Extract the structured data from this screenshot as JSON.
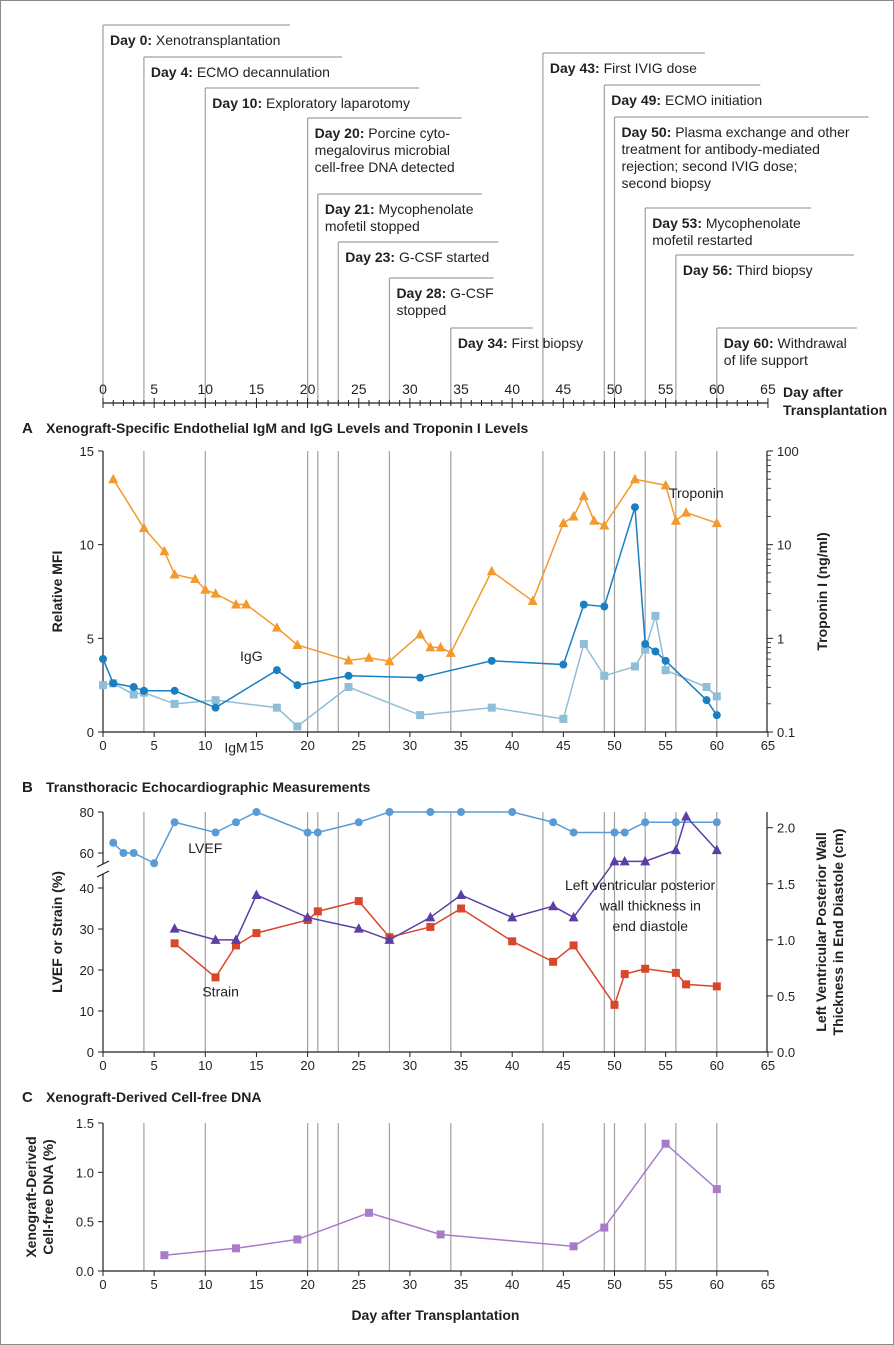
{
  "timeline": {
    "axis_label": "Day after Transplantation",
    "ticks": [
      0,
      5,
      10,
      15,
      20,
      25,
      30,
      35,
      40,
      45,
      50,
      55,
      60,
      65
    ],
    "events": [
      {
        "day": 0,
        "label": "Day 0:",
        "lines": [
          "Xenotransplantation"
        ]
      },
      {
        "day": 4,
        "label": "Day 4:",
        "lines": [
          "ECMO decannulation"
        ]
      },
      {
        "day": 10,
        "label": "Day 10:",
        "lines": [
          "Exploratory laparotomy"
        ]
      },
      {
        "day": 20,
        "label": "Day 20:",
        "lines": [
          "Porcine cyto-",
          "megalovirus microbial",
          "cell-free DNA detected"
        ]
      },
      {
        "day": 21,
        "label": "Day 21:",
        "lines": [
          "Mycophenolate",
          "mofetil stopped"
        ]
      },
      {
        "day": 23,
        "label": "Day 23:",
        "lines": [
          "G-CSF started"
        ]
      },
      {
        "day": 28,
        "label": "Day 28:",
        "lines": [
          "G-CSF",
          "stopped"
        ]
      },
      {
        "day": 34,
        "label": "Day 34:",
        "lines": [
          "First biopsy"
        ]
      },
      {
        "day": 43,
        "label": "Day 43:",
        "lines": [
          "First IVIG dose"
        ]
      },
      {
        "day": 49,
        "label": "Day 49:",
        "lines": [
          "ECMO initiation"
        ]
      },
      {
        "day": 50,
        "label": "Day 50:",
        "lines": [
          "Plasma exchange and other",
          "treatment for antibody-mediated",
          "rejection; second IVIG dose;",
          "second biopsy"
        ]
      },
      {
        "day": 53,
        "label": "Day 53:",
        "lines": [
          "Mycophenolate",
          "mofetil restarted"
        ]
      },
      {
        "day": 56,
        "label": "Day 56:",
        "lines": [
          "Third biopsy"
        ]
      },
      {
        "day": 60,
        "label": "Day 60:",
        "lines": [
          "Withdrawal",
          "of life support"
        ]
      }
    ]
  },
  "chart_data": [
    {
      "id": "A",
      "type": "line",
      "title": "Xenograft-Specific Endothelial IgM and IgG Levels and Troponin I Levels",
      "letter": "A",
      "xlabel": "",
      "ylabel": "Relative MFI",
      "y2label": "Troponin I (ng/ml)",
      "xlim": [
        0,
        65
      ],
      "ylim": [
        0,
        15
      ],
      "y2lim": [
        0.1,
        100
      ],
      "y2scale": "log",
      "x_ticks": [
        0,
        5,
        10,
        15,
        20,
        25,
        30,
        35,
        40,
        45,
        50,
        55,
        60,
        65
      ],
      "y_ticks": [
        0,
        5,
        10,
        15
      ],
      "y2_ticks": [
        0.1,
        1,
        10,
        100
      ],
      "series": [
        {
          "name": "IgG",
          "axis": "left",
          "marker": "circle",
          "color": "#1a7fc1",
          "x": [
            0,
            1,
            3,
            4,
            7,
            11,
            17,
            19,
            24,
            31,
            38,
            45,
            47,
            49,
            52,
            53,
            54,
            55,
            59,
            60
          ],
          "y": [
            3.9,
            2.6,
            2.4,
            2.2,
            2.2,
            1.3,
            3.3,
            2.5,
            3.0,
            2.9,
            3.8,
            3.6,
            6.8,
            6.7,
            12.0,
            4.7,
            4.3,
            3.8,
            1.7,
            0.9
          ]
        },
        {
          "name": "IgM",
          "axis": "left",
          "marker": "square",
          "color": "#8fbed6",
          "x": [
            0,
            1,
            3,
            4,
            7,
            11,
            17,
            19,
            24,
            31,
            38,
            45,
            47,
            49,
            52,
            53,
            54,
            55,
            59,
            60
          ],
          "y": [
            2.5,
            2.6,
            2.0,
            2.1,
            1.5,
            1.7,
            1.3,
            0.3,
            2.4,
            0.9,
            1.3,
            0.7,
            4.7,
            3.0,
            3.5,
            4.4,
            6.2,
            3.3,
            2.4,
            1.9
          ]
        },
        {
          "name": "Troponin",
          "axis": "right",
          "marker": "triangle",
          "color": "#f29a2e",
          "x": [
            1,
            4,
            6,
            7,
            9,
            10,
            11,
            13,
            14,
            17,
            19,
            24,
            26,
            28,
            31,
            32,
            33,
            34,
            38,
            42,
            45,
            46,
            47,
            48,
            49,
            52,
            55,
            56,
            57,
            60
          ],
          "y": [
            50,
            15,
            8.5,
            4.8,
            4.3,
            3.3,
            3.0,
            2.3,
            2.3,
            1.3,
            0.85,
            0.58,
            0.62,
            0.57,
            1.1,
            0.8,
            0.8,
            0.7,
            5.2,
            2.5,
            17,
            20,
            33,
            18,
            16,
            50,
            43,
            18,
            22,
            17
          ]
        }
      ],
      "annotations": [
        {
          "text": "IgG",
          "x": 14.5,
          "y": 3.8
        },
        {
          "text": "IgM",
          "x": 13.0,
          "y": -1.1
        },
        {
          "text": "Troponin",
          "x": 58.0,
          "y": 12.5
        }
      ]
    },
    {
      "id": "B",
      "type": "line",
      "title": "Transthoracic Echocardiographic Measurements",
      "letter": "B",
      "xlabel": "",
      "ylabel": "LVEF or Strain (%)",
      "y2label_lines": [
        "Left Ventricular Posterior Wall",
        "Thickness in End Diastole (cm)"
      ],
      "xlim": [
        0,
        65
      ],
      "ylim": [
        0,
        80
      ],
      "y_axis_break": [
        40,
        60
      ],
      "y2lim": [
        0.0,
        2.0
      ],
      "x_ticks": [
        0,
        5,
        10,
        15,
        20,
        25,
        30,
        35,
        40,
        45,
        50,
        55,
        60,
        65
      ],
      "y_ticks": [
        0,
        10,
        20,
        30,
        40,
        60,
        80
      ],
      "y2_ticks": [
        0.0,
        0.5,
        1.0,
        1.5,
        2.0
      ],
      "series": [
        {
          "name": "LVEF",
          "axis": "left",
          "marker": "circle",
          "color": "#5b9bd5",
          "x": [
            1,
            2,
            3,
            5,
            7,
            11,
            13,
            15,
            20,
            21,
            25,
            28,
            32,
            35,
            40,
            44,
            46,
            50,
            51,
            53,
            56,
            60
          ],
          "y": [
            65,
            60,
            60,
            55,
            75,
            70,
            75,
            80,
            70,
            70,
            75,
            80,
            80,
            80,
            80,
            75,
            70,
            70,
            70,
            75,
            75,
            75
          ]
        },
        {
          "name": "Strain",
          "axis": "left",
          "marker": "square",
          "color": "#d9472b",
          "x": [
            7,
            11,
            13,
            15,
            20,
            21,
            25,
            28,
            32,
            35,
            40,
            44,
            46,
            50,
            51,
            53,
            56,
            57,
            60
          ],
          "y": [
            26.5,
            18.2,
            26,
            29,
            32.2,
            34.3,
            36.8,
            28,
            30.5,
            35,
            27,
            22,
            26,
            11.5,
            19,
            20.3,
            19.3,
            16.5,
            16
          ]
        },
        {
          "name": "Left ventricular posterior wall thickness in end diastole",
          "axis": "right",
          "marker": "triangle",
          "color": "#5b3ea6",
          "x": [
            7,
            11,
            13,
            15,
            20,
            25,
            28,
            32,
            35,
            40,
            44,
            46,
            50,
            51,
            53,
            56,
            57,
            60
          ],
          "y": [
            1.1,
            1.0,
            1.0,
            1.4,
            1.2,
            1.1,
            1.0,
            1.2,
            1.4,
            1.2,
            1.3,
            1.2,
            1.7,
            1.7,
            1.7,
            1.8,
            2.1,
            1.8
          ]
        }
      ],
      "annotations": [
        {
          "text": "LVEF",
          "x": 10,
          "y": 60
        },
        {
          "text": "Strain",
          "x": 11.5,
          "y": 13.5
        },
        {
          "text": "Left ventricular posterior",
          "x": 52.5,
          "y": 39.5
        },
        {
          "text": "wall thickness in",
          "x": 53.5,
          "y": 34.5
        },
        {
          "text": "end diastole",
          "x": 53.5,
          "y": 29.5
        }
      ]
    },
    {
      "id": "C",
      "type": "line",
      "title": "Xenograft-Derived Cell-free DNA",
      "letter": "C",
      "xlabel": "Day after Transplantation",
      "ylabel_lines": [
        "Xenograft-Derived",
        "Cell-free DNA (%)"
      ],
      "xlim": [
        0,
        65
      ],
      "ylim": [
        0.0,
        1.5
      ],
      "x_ticks": [
        0,
        5,
        10,
        15,
        20,
        25,
        30,
        35,
        40,
        45,
        50,
        55,
        60,
        65
      ],
      "y_ticks": [
        0.0,
        0.5,
        1.0,
        1.5
      ],
      "series": [
        {
          "name": "",
          "axis": "left",
          "marker": "square",
          "color": "#a77bc9",
          "x": [
            6,
            13,
            19,
            26,
            33,
            46,
            49,
            55,
            60
          ],
          "y": [
            0.16,
            0.23,
            0.32,
            0.59,
            0.37,
            0.25,
            0.44,
            1.29,
            0.83
          ]
        }
      ]
    }
  ]
}
